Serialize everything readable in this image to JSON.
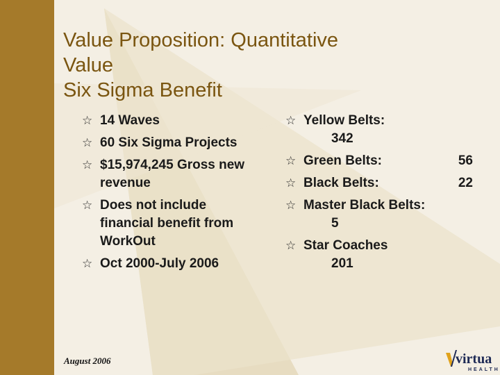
{
  "slide": {
    "title_lines": [
      "Value Proposition: Quantitative",
      "Value",
      "Six Sigma Benefit"
    ],
    "left_bullets": [
      {
        "text": "14 Waves"
      },
      {
        "text": "60 Six Sigma Projects"
      },
      {
        "text": "$15,974,245 Gross new revenue"
      },
      {
        "text": "Does not include financial benefit from WorkOut"
      },
      {
        "text": "Oct 2000-July 2006"
      }
    ],
    "right_bullets": [
      {
        "label": "Yellow Belts:",
        "value": "342",
        "value_wrapped": true
      },
      {
        "label": "Green Belts:",
        "value": "56",
        "value_wrapped": false
      },
      {
        "label": "Black Belts:",
        "value": "22",
        "value_wrapped": false
      },
      {
        "label": "Master Black Belts:",
        "value": "5",
        "value_wrapped": true
      },
      {
        "label": "Star Coaches",
        "value": "201",
        "value_wrapped": true
      }
    ],
    "footer_date": "August 2006",
    "logo": {
      "wordmark": "virtua",
      "subtext": "HEALTH",
      "color": "#1e2a55",
      "accent": "#e0a21b"
    },
    "bullet_icon": "star-outline-icon",
    "colors": {
      "background": "#f4efe4",
      "left_bar": "#a57a2a",
      "title": "#7a5510"
    }
  }
}
